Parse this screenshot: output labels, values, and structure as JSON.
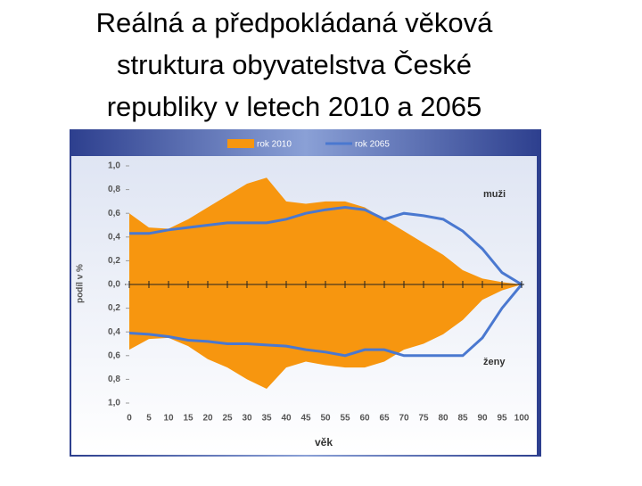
{
  "chart_data": {
    "type": "mirror-area",
    "title": [
      "Reálná a předpokládaná věková",
      "struktura obyvatelstva České",
      "republiky v letech 2010 a 2065"
    ],
    "ylabel": "podíl v %",
    "xlabel": "věk",
    "upper_label": "muži",
    "lower_label": "ženy",
    "x": [
      0,
      5,
      10,
      15,
      20,
      25,
      30,
      35,
      40,
      45,
      50,
      55,
      60,
      65,
      70,
      75,
      80,
      85,
      90,
      95,
      100
    ],
    "xlim": [
      0,
      100
    ],
    "xticks": [
      0,
      5,
      10,
      15,
      20,
      25,
      30,
      35,
      40,
      45,
      50,
      55,
      60,
      65,
      70,
      75,
      80,
      85,
      90,
      95,
      100
    ],
    "ylim": [
      -1,
      1
    ],
    "yticks": [
      {
        "value": 1,
        "label": "1,0"
      },
      {
        "value": 0.8,
        "label": "0,8"
      },
      {
        "value": 0.6,
        "label": "0,6"
      },
      {
        "value": 0.4,
        "label": "0,4"
      },
      {
        "value": 0.2,
        "label": "0,2"
      },
      {
        "value": 0,
        "label": "0,0"
      },
      {
        "value": -0.2,
        "label": "0,2"
      },
      {
        "value": -0.4,
        "label": "0,4"
      },
      {
        "value": -0.6,
        "label": "0,6"
      },
      {
        "value": -0.8,
        "label": "0,8"
      },
      {
        "value": -1,
        "label": "1,0"
      }
    ],
    "series": [
      {
        "name": "rok 2010",
        "color": "#f7960f",
        "kind": "area",
        "values": [
          0.6,
          0.48,
          0.47,
          0.55,
          0.65,
          0.75,
          0.85,
          0.9,
          0.7,
          0.68,
          0.7,
          0.7,
          0.65,
          0.55,
          0.45,
          0.35,
          0.25,
          0.12,
          0.05,
          0.02,
          0
        ],
        "values_lower": [
          -0.55,
          -0.46,
          -0.45,
          -0.52,
          -0.63,
          -0.7,
          -0.8,
          -0.88,
          -0.7,
          -0.65,
          -0.68,
          -0.7,
          -0.7,
          -0.65,
          -0.55,
          -0.5,
          -0.42,
          -0.3,
          -0.13,
          -0.05,
          0
        ]
      },
      {
        "name": "rok 2065",
        "color": "#4a78d0",
        "kind": "line",
        "values": [
          0.43,
          0.43,
          0.46,
          0.48,
          0.5,
          0.52,
          0.52,
          0.52,
          0.55,
          0.6,
          0.63,
          0.65,
          0.63,
          0.55,
          0.6,
          0.58,
          0.55,
          0.45,
          0.3,
          0.1,
          0
        ],
        "values_lower": [
          -0.41,
          -0.42,
          -0.44,
          -0.47,
          -0.48,
          -0.5,
          -0.5,
          -0.51,
          -0.52,
          -0.55,
          -0.57,
          -0.6,
          -0.55,
          -0.55,
          -0.6,
          -0.6,
          -0.6,
          -0.6,
          -0.45,
          -0.2,
          0
        ]
      }
    ]
  }
}
